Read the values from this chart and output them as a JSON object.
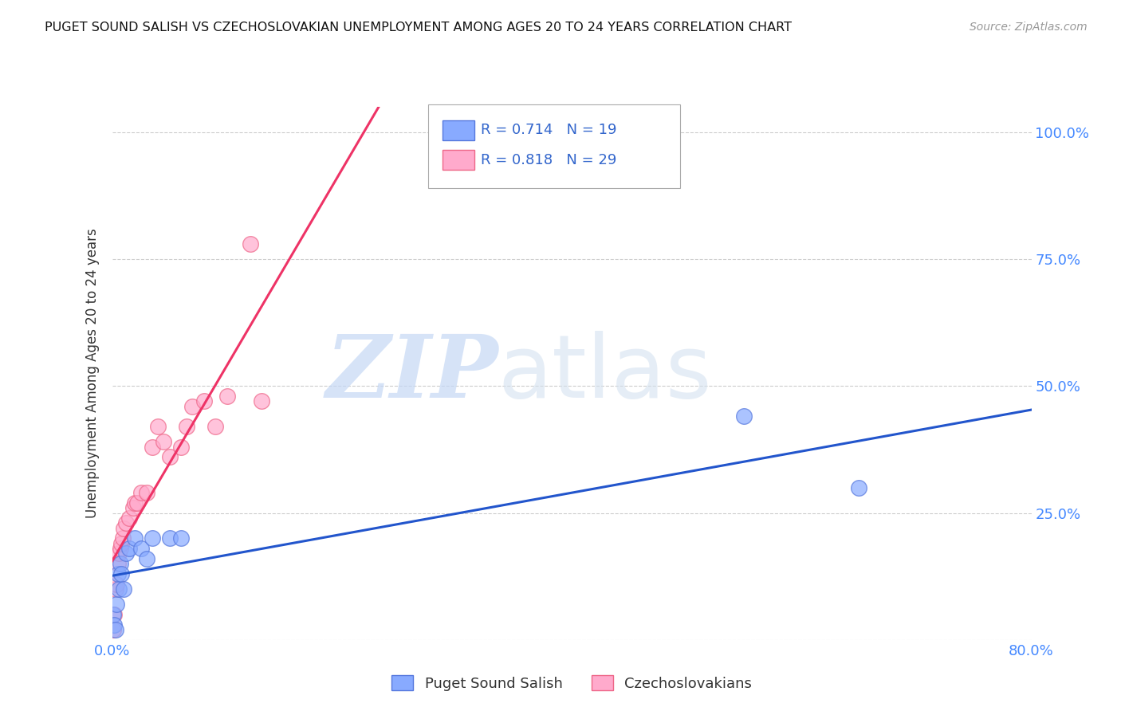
{
  "title": "PUGET SOUND SALISH VS CZECHOSLOVAKIAN UNEMPLOYMENT AMONG AGES 20 TO 24 YEARS CORRELATION CHART",
  "source": "Source: ZipAtlas.com",
  "ylabel": "Unemployment Among Ages 20 to 24 years",
  "xlim": [
    0.0,
    0.8
  ],
  "ylim": [
    0.0,
    1.05
  ],
  "xticks": [
    0.0,
    0.2,
    0.4,
    0.6,
    0.8
  ],
  "xticklabels": [
    "0.0%",
    "",
    "",
    "",
    "80.0%"
  ],
  "yticks": [
    0.0,
    0.25,
    0.5,
    0.75,
    1.0
  ],
  "right_yticklabels": [
    "",
    "25.0%",
    "50.0%",
    "75.0%",
    "100.0%"
  ],
  "background_color": "#ffffff",
  "grid_color": "#cccccc",
  "series1_label": "Puget Sound Salish",
  "series1_color": "#88aaff",
  "series1_edge": "#5577dd",
  "series1_line": "#2255cc",
  "series1_R": "0.714",
  "series1_N": "19",
  "series2_label": "Czechoslovakians",
  "series2_color": "#ffaacc",
  "series2_edge": "#ee6688",
  "series2_line": "#ee3366",
  "series2_R": "0.818",
  "series2_N": "29",
  "puget_x": [
    0.001,
    0.002,
    0.003,
    0.004,
    0.005,
    0.006,
    0.007,
    0.008,
    0.01,
    0.012,
    0.015,
    0.02,
    0.025,
    0.03,
    0.035,
    0.05,
    0.06,
    0.55,
    0.65
  ],
  "puget_y": [
    0.05,
    0.03,
    0.02,
    0.07,
    0.13,
    0.1,
    0.15,
    0.13,
    0.1,
    0.17,
    0.18,
    0.2,
    0.18,
    0.16,
    0.2,
    0.2,
    0.2,
    0.44,
    0.3
  ],
  "czech_x": [
    0.001,
    0.002,
    0.003,
    0.004,
    0.005,
    0.006,
    0.007,
    0.008,
    0.009,
    0.01,
    0.012,
    0.015,
    0.018,
    0.02,
    0.022,
    0.025,
    0.03,
    0.035,
    0.04,
    0.045,
    0.05,
    0.06,
    0.065,
    0.07,
    0.08,
    0.09,
    0.1,
    0.12,
    0.13
  ],
  "czech_y": [
    0.02,
    0.05,
    0.1,
    0.11,
    0.15,
    0.17,
    0.18,
    0.19,
    0.2,
    0.22,
    0.23,
    0.24,
    0.26,
    0.27,
    0.27,
    0.29,
    0.29,
    0.38,
    0.42,
    0.39,
    0.36,
    0.38,
    0.42,
    0.46,
    0.47,
    0.42,
    0.48,
    0.78,
    0.47
  ]
}
